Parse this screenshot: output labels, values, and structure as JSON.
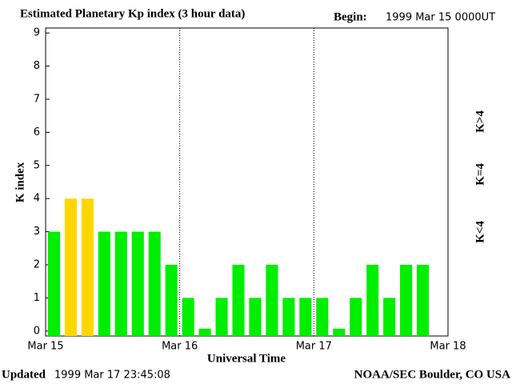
{
  "chart_data": {
    "type": "bar",
    "title": "Estimated Planetary Kp index (3 hour data)",
    "begin_label": "Begin:",
    "begin_value": "1999 Mar 15 0000UT",
    "y_label": "K index",
    "x_label": "Universal Time",
    "updated_label": "Updated",
    "updated_value": "1999 Mar 17 23:45:08",
    "source": "NOAA/SEC Boulder, CO USA",
    "values": [
      3,
      4,
      4,
      3,
      3,
      3,
      3,
      2,
      1,
      0,
      1,
      2,
      1,
      2,
      1,
      1,
      1,
      0,
      1,
      2,
      1,
      2,
      2
    ],
    "bar_colors": [
      "#00ee00",
      "#ffd700",
      "#ffd700",
      "#00ee00",
      "#00ee00",
      "#00ee00",
      "#00ee00",
      "#00ee00",
      "#00ee00",
      "#00ee00",
      "#00ee00",
      "#00ee00",
      "#00ee00",
      "#00ee00",
      "#00ee00",
      "#00ee00",
      "#00ee00",
      "#00ee00",
      "#00ee00",
      "#00ee00",
      "#00ee00",
      "#00ee00",
      "#00ee00"
    ],
    "bars_per_day": 8,
    "legend": [
      {
        "label": "K<4",
        "color": "#00ee00"
      },
      {
        "label": "K=4",
        "color": "#ffd700"
      },
      {
        "label": "K>4",
        "color": "#ff2200"
      }
    ],
    "ylim": [
      -0.15,
      9.15
    ],
    "yticks": [
      0,
      1,
      2,
      3,
      4,
      5,
      6,
      7,
      8,
      9
    ],
    "xlim": [
      0,
      3
    ],
    "xticks": [
      {
        "value": 0,
        "label": "Mar 15"
      },
      {
        "value": 1,
        "label": "Mar 16"
      },
      {
        "value": 2,
        "label": "Mar 17"
      },
      {
        "value": 3,
        "label": "Mar 18"
      }
    ],
    "grid": true
  }
}
